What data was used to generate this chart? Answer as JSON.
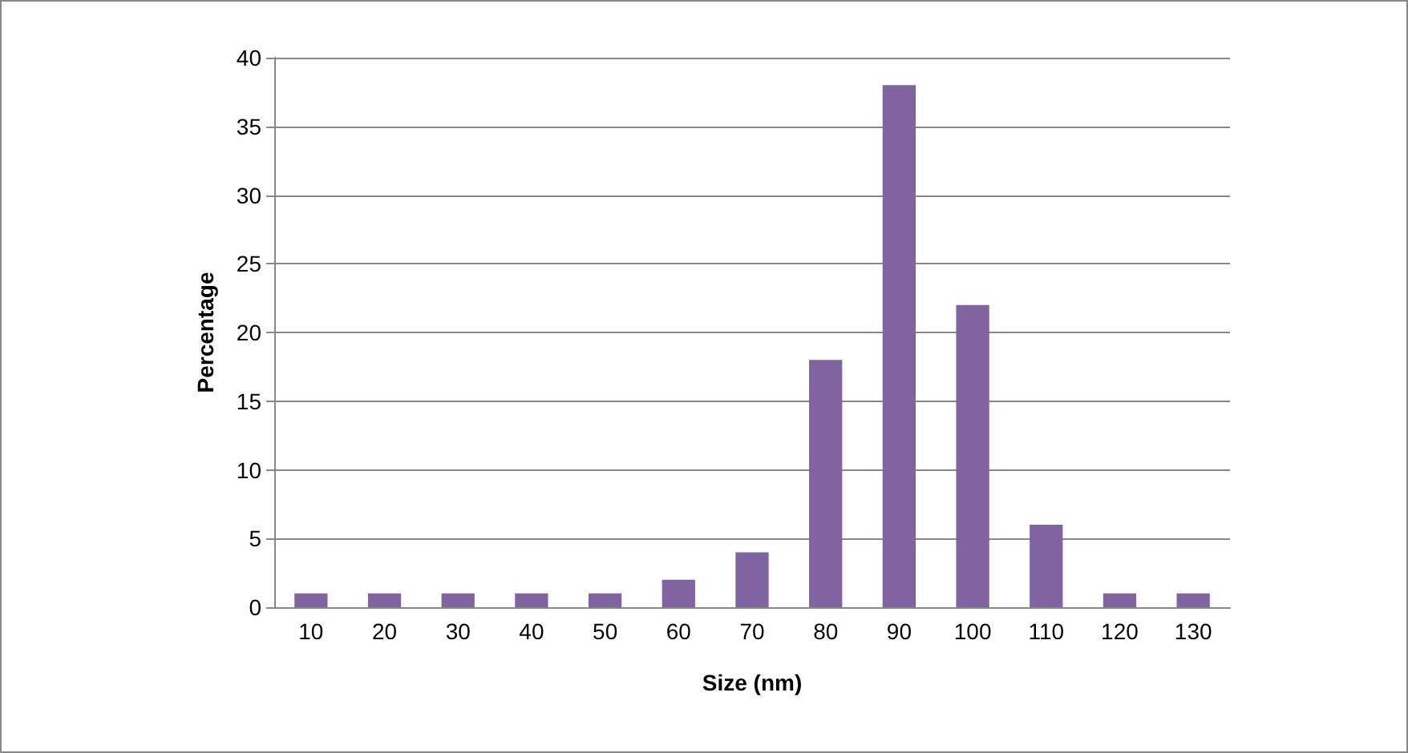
{
  "chart_data": {
    "type": "bar",
    "xlabel": "Size (nm)",
    "ylabel": "Percentage",
    "categories": [
      "10",
      "20",
      "30",
      "40",
      "50",
      "60",
      "70",
      "80",
      "90",
      "100",
      "110",
      "120",
      "130"
    ],
    "values": [
      1,
      1,
      1,
      1,
      1,
      2,
      4,
      18,
      38,
      22,
      6,
      1,
      1
    ],
    "color": "#8064a2",
    "ylim": [
      0,
      40
    ],
    "yticks": [
      0,
      5,
      10,
      15,
      20,
      25,
      30,
      35,
      40
    ],
    "grid": "y"
  }
}
